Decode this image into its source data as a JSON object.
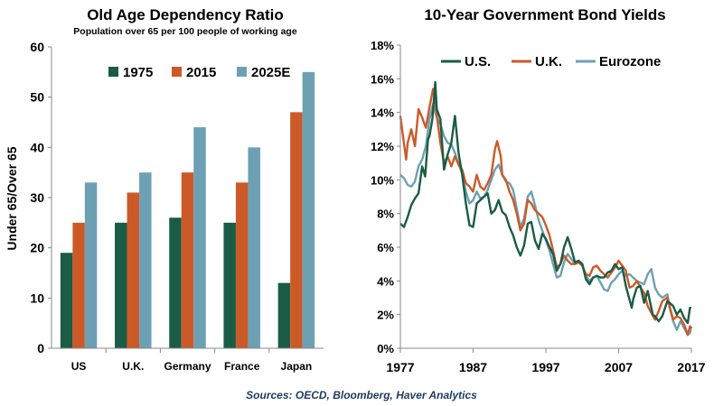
{
  "source_text": "Sources: OECD, Bloomberg, Haver Analytics",
  "colors": {
    "green": "#1a5c45",
    "orange": "#cc5a28",
    "blue": "#6ea0b4",
    "axis": "#888888"
  },
  "chart_data": [
    {
      "type": "bar",
      "title": "Old Age Dependency Ratio",
      "subtitle": "Population over 65 per 100 people of working age",
      "ylabel": "Under 65/Over 65",
      "xlabel": "",
      "ylim": [
        0,
        60
      ],
      "yticks": [
        "0",
        "10",
        "20",
        "30",
        "40",
        "50",
        "60"
      ],
      "grid": false,
      "legend_position": "top",
      "categories": [
        "US",
        "U.K.",
        "Germany",
        "France",
        "Japan"
      ],
      "series": [
        {
          "name": "1975",
          "color": "#1a5c45",
          "values": [
            19,
            25,
            26,
            25,
            13
          ]
        },
        {
          "name": "2015",
          "color": "#cc5a28",
          "values": [
            25,
            31,
            35,
            33,
            47
          ]
        },
        {
          "name": "2025E",
          "color": "#6ea0b4",
          "values": [
            33,
            35,
            44,
            40,
            55
          ]
        }
      ]
    },
    {
      "type": "line",
      "title": "10-Year Government Bond Yields",
      "xlabel": "",
      "ylabel": "",
      "xlim": [
        1977,
        2017
      ],
      "ylim": [
        0,
        18
      ],
      "yticks": [
        "0%",
        "2%",
        "4%",
        "6%",
        "8%",
        "10%",
        "12%",
        "14%",
        "16%",
        "18%"
      ],
      "xticks": [
        "1977",
        "1987",
        "1997",
        "2007",
        "2017"
      ],
      "grid": false,
      "legend_position": "top",
      "series": [
        {
          "name": "U.S.",
          "color": "#1a5c45",
          "points": [
            [
              1977,
              7.4
            ],
            [
              1977.5,
              7.2
            ],
            [
              1978,
              7.8
            ],
            [
              1978.5,
              8.5
            ],
            [
              1979,
              8.9
            ],
            [
              1979.5,
              9.2
            ],
            [
              1980,
              10.8
            ],
            [
              1980.4,
              10.2
            ],
            [
              1980.8,
              12.4
            ],
            [
              1981,
              12.6
            ],
            [
              1981.4,
              13.6
            ],
            [
              1981.8,
              15.8
            ],
            [
              1982,
              14.2
            ],
            [
              1982.5,
              13.6
            ],
            [
              1983,
              10.6
            ],
            [
              1983.5,
              11.5
            ],
            [
              1984,
              12.2
            ],
            [
              1984.5,
              13.8
            ],
            [
              1985,
              11.6
            ],
            [
              1985.5,
              10.3
            ],
            [
              1986,
              8.6
            ],
            [
              1986.5,
              7.3
            ],
            [
              1987,
              7.2
            ],
            [
              1987.5,
              8.6
            ],
            [
              1988,
              8.8
            ],
            [
              1988.5,
              9.0
            ],
            [
              1989,
              9.2
            ],
            [
              1989.5,
              8.0
            ],
            [
              1990,
              8.2
            ],
            [
              1990.5,
              8.8
            ],
            [
              1991,
              8.1
            ],
            [
              1991.5,
              7.9
            ],
            [
              1992,
              7.2
            ],
            [
              1992.5,
              6.7
            ],
            [
              1993,
              6.0
            ],
            [
              1993.5,
              5.5
            ],
            [
              1994,
              6.1
            ],
            [
              1994.5,
              7.4
            ],
            [
              1995,
              7.5
            ],
            [
              1995.5,
              6.4
            ],
            [
              1996,
              5.9
            ],
            [
              1996.5,
              6.8
            ],
            [
              1997,
              6.5
            ],
            [
              1997.5,
              6.0
            ],
            [
              1998,
              5.6
            ],
            [
              1998.5,
              4.6
            ],
            [
              1999,
              5.0
            ],
            [
              1999.5,
              6.0
            ],
            [
              2000,
              6.6
            ],
            [
              2000.5,
              5.9
            ],
            [
              2001,
              5.1
            ],
            [
              2001.5,
              5.2
            ],
            [
              2002,
              5.0
            ],
            [
              2002.5,
              4.1
            ],
            [
              2003,
              3.8
            ],
            [
              2003.5,
              4.2
            ],
            [
              2004,
              4.3
            ],
            [
              2004.5,
              4.2
            ],
            [
              2005,
              4.2
            ],
            [
              2005.5,
              4.5
            ],
            [
              2006,
              4.6
            ],
            [
              2006.5,
              5.0
            ],
            [
              2007,
              4.7
            ],
            [
              2007.5,
              4.8
            ],
            [
              2008,
              3.7
            ],
            [
              2008.8,
              2.4
            ],
            [
              2009,
              2.9
            ],
            [
              2009.5,
              3.6
            ],
            [
              2010,
              3.7
            ],
            [
              2010.5,
              2.7
            ],
            [
              2011,
              3.4
            ],
            [
              2011.7,
              2.0
            ],
            [
              2012,
              1.9
            ],
            [
              2012.5,
              1.6
            ],
            [
              2013,
              1.9
            ],
            [
              2013.7,
              2.8
            ],
            [
              2014,
              2.7
            ],
            [
              2014.5,
              2.5
            ],
            [
              2015,
              2.0
            ],
            [
              2015.5,
              2.3
            ],
            [
              2016,
              1.8
            ],
            [
              2016.5,
              1.5
            ],
            [
              2016.8,
              2.4
            ],
            [
              2017,
              2.4
            ]
          ]
        },
        {
          "name": "U.K.",
          "color": "#cc5a28",
          "points": [
            [
              1977,
              13.8
            ],
            [
              1977.3,
              12.8
            ],
            [
              1977.8,
              11.2
            ],
            [
              1978,
              12.2
            ],
            [
              1978.5,
              13.0
            ],
            [
              1979,
              12.0
            ],
            [
              1979.5,
              14.2
            ],
            [
              1980,
              13.7
            ],
            [
              1980.5,
              13.1
            ],
            [
              1981,
              14.3
            ],
            [
              1981.5,
              15.4
            ],
            [
              1981.8,
              14.8
            ],
            [
              1982,
              13.8
            ],
            [
              1982.5,
              12.2
            ],
            [
              1983,
              11.0
            ],
            [
              1983.5,
              11.4
            ],
            [
              1984,
              10.8
            ],
            [
              1984.5,
              11.4
            ],
            [
              1985,
              10.9
            ],
            [
              1985.5,
              10.6
            ],
            [
              1986,
              9.8
            ],
            [
              1986.5,
              9.6
            ],
            [
              1987,
              9.3
            ],
            [
              1987.5,
              10.3
            ],
            [
              1988,
              9.6
            ],
            [
              1988.5,
              9.4
            ],
            [
              1989,
              9.8
            ],
            [
              1989.5,
              10.3
            ],
            [
              1990,
              11.8
            ],
            [
              1990.3,
              12.3
            ],
            [
              1990.8,
              11.4
            ],
            [
              1991,
              10.3
            ],
            [
              1991.5,
              10.0
            ],
            [
              1992,
              9.3
            ],
            [
              1992.5,
              8.8
            ],
            [
              1993,
              8.0
            ],
            [
              1993.5,
              7.0
            ],
            [
              1994,
              7.4
            ],
            [
              1994.5,
              8.8
            ],
            [
              1995,
              8.6
            ],
            [
              1995.5,
              8.2
            ],
            [
              1996,
              8.0
            ],
            [
              1996.5,
              7.8
            ],
            [
              1997,
              7.3
            ],
            [
              1997.5,
              6.7
            ],
            [
              1998,
              5.8
            ],
            [
              1998.5,
              4.8
            ],
            [
              1999,
              5.0
            ],
            [
              1999.5,
              5.5
            ],
            [
              2000,
              5.2
            ],
            [
              2000.5,
              5.0
            ],
            [
              2001,
              5.0
            ],
            [
              2001.5,
              5.1
            ],
            [
              2002,
              4.9
            ],
            [
              2002.5,
              4.4
            ],
            [
              2003,
              4.3
            ],
            [
              2003.5,
              4.8
            ],
            [
              2004,
              4.9
            ],
            [
              2004.5,
              4.6
            ],
            [
              2005,
              4.4
            ],
            [
              2005.5,
              4.2
            ],
            [
              2006,
              4.5
            ],
            [
              2006.5,
              4.8
            ],
            [
              2007,
              5.2
            ],
            [
              2007.5,
              4.9
            ],
            [
              2008,
              4.6
            ],
            [
              2008.5,
              3.6
            ],
            [
              2009,
              3.7
            ],
            [
              2009.5,
              4.0
            ],
            [
              2010,
              3.6
            ],
            [
              2010.5,
              3.3
            ],
            [
              2011,
              2.5
            ],
            [
              2011.5,
              2.1
            ],
            [
              2012,
              1.7
            ],
            [
              2012.5,
              2.2
            ],
            [
              2013,
              2.8
            ],
            [
              2013.7,
              3.0
            ],
            [
              2014,
              2.5
            ],
            [
              2014.5,
              1.7
            ],
            [
              2015,
              1.9
            ],
            [
              2015.5,
              1.8
            ],
            [
              2016,
              1.4
            ],
            [
              2016.5,
              0.8
            ],
            [
              2016.8,
              1.3
            ],
            [
              2017,
              1.2
            ]
          ]
        },
        {
          "name": "Eurozone",
          "color": "#6ea0b4",
          "points": [
            [
              1977,
              10.3
            ],
            [
              1977.5,
              10.1
            ],
            [
              1978,
              9.7
            ],
            [
              1978.5,
              9.6
            ],
            [
              1979,
              9.9
            ],
            [
              1979.5,
              10.8
            ],
            [
              1980,
              11.2
            ],
            [
              1980.5,
              12.0
            ],
            [
              1981,
              13.6
            ],
            [
              1981.5,
              14.5
            ],
            [
              1981.8,
              14.0
            ],
            [
              1982,
              13.7
            ],
            [
              1982.5,
              13.3
            ],
            [
              1983,
              12.6
            ],
            [
              1983.5,
              12.2
            ],
            [
              1984,
              12.1
            ],
            [
              1984.5,
              11.6
            ],
            [
              1985,
              10.9
            ],
            [
              1985.5,
              10.4
            ],
            [
              1986,
              9.3
            ],
            [
              1986.5,
              8.6
            ],
            [
              1987,
              8.8
            ],
            [
              1987.5,
              9.3
            ],
            [
              1988,
              8.9
            ],
            [
              1988.5,
              9.0
            ],
            [
              1989,
              9.4
            ],
            [
              1989.5,
              10.0
            ],
            [
              1990,
              10.6
            ],
            [
              1990.5,
              10.9
            ],
            [
              1991,
              10.3
            ],
            [
              1991.5,
              9.9
            ],
            [
              1992,
              9.8
            ],
            [
              1992.5,
              9.4
            ],
            [
              1993,
              8.3
            ],
            [
              1993.5,
              7.2
            ],
            [
              1994,
              7.7
            ],
            [
              1994.5,
              9.0
            ],
            [
              1995,
              9.3
            ],
            [
              1995.5,
              8.5
            ],
            [
              1996,
              7.6
            ],
            [
              1996.5,
              7.0
            ],
            [
              1997,
              6.4
            ],
            [
              1997.5,
              5.8
            ],
            [
              1998,
              5.0
            ],
            [
              1998.5,
              4.2
            ],
            [
              1999,
              4.3
            ],
            [
              1999.5,
              5.1
            ],
            [
              2000,
              5.6
            ],
            [
              2000.5,
              5.3
            ],
            [
              2001,
              5.0
            ],
            [
              2001.5,
              5.1
            ],
            [
              2002,
              5.0
            ],
            [
              2002.5,
              4.3
            ],
            [
              2003,
              4.0
            ],
            [
              2003.5,
              4.2
            ],
            [
              2004,
              4.3
            ],
            [
              2004.5,
              3.9
            ],
            [
              2005,
              3.5
            ],
            [
              2005.5,
              3.4
            ],
            [
              2006,
              3.9
            ],
            [
              2006.5,
              4.1
            ],
            [
              2007,
              4.4
            ],
            [
              2007.5,
              4.6
            ],
            [
              2008,
              4.3
            ],
            [
              2008.5,
              4.4
            ],
            [
              2009,
              4.2
            ],
            [
              2009.5,
              4.0
            ],
            [
              2010,
              3.9
            ],
            [
              2010.5,
              3.8
            ],
            [
              2011,
              4.4
            ],
            [
              2011.5,
              4.7
            ],
            [
              2012,
              3.6
            ],
            [
              2012.5,
              3.2
            ],
            [
              2013,
              3.0
            ],
            [
              2013.7,
              3.2
            ],
            [
              2014,
              2.4
            ],
            [
              2014.5,
              1.6
            ],
            [
              2015,
              1.1
            ],
            [
              2015.5,
              1.6
            ],
            [
              2016,
              1.2
            ],
            [
              2016.5,
              0.8
            ],
            [
              2016.8,
              0.9
            ],
            [
              2017,
              1.3
            ]
          ]
        }
      ]
    }
  ]
}
